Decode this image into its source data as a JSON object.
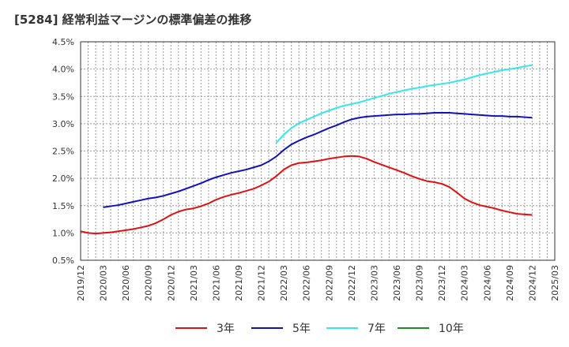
{
  "title": "[5284]  経常利益マージンの標準偏差の推移",
  "colors": {
    "series3": "#dd1111",
    "series5": "#1111bb",
    "series7": "#33e6f0",
    "series10": "#228822"
  },
  "chart_data": {
    "type": "line",
    "title": "[5284]  経常利益マージンの標準偏差の推移",
    "xlabel": "",
    "ylabel": "",
    "ylim": [
      0.5,
      4.5
    ],
    "y_ticks": [
      "0.5%",
      "1.0%",
      "1.5%",
      "2.0%",
      "2.5%",
      "3.0%",
      "3.5%",
      "4.0%",
      "4.5%"
    ],
    "x_ticks": [
      "2019/12",
      "2020/03",
      "2020/06",
      "2020/09",
      "2020/12",
      "2021/03",
      "2021/06",
      "2021/09",
      "2021/12",
      "2022/03",
      "2022/06",
      "2022/09",
      "2022/12",
      "2023/03",
      "2023/06",
      "2023/09",
      "2023/12",
      "2024/03",
      "2024/06",
      "2024/09",
      "2024/12",
      "2025/03"
    ],
    "grid": true,
    "legend_position": "bottom",
    "series": [
      {
        "name": "3年",
        "color": "#dd1111",
        "points": [
          [
            "2019/12",
            1.03
          ],
          [
            "2020/01",
            1.0
          ],
          [
            "2020/02",
            0.99
          ],
          [
            "2020/03",
            1.0
          ],
          [
            "2020/04",
            1.01
          ],
          [
            "2020/05",
            1.03
          ],
          [
            "2020/06",
            1.05
          ],
          [
            "2020/07",
            1.07
          ],
          [
            "2020/08",
            1.1
          ],
          [
            "2020/09",
            1.13
          ],
          [
            "2020/10",
            1.18
          ],
          [
            "2020/11",
            1.25
          ],
          [
            "2020/12",
            1.33
          ],
          [
            "2021/01",
            1.39
          ],
          [
            "2021/02",
            1.43
          ],
          [
            "2021/03",
            1.45
          ],
          [
            "2021/04",
            1.49
          ],
          [
            "2021/05",
            1.54
          ],
          [
            "2021/06",
            1.61
          ],
          [
            "2021/07",
            1.66
          ],
          [
            "2021/08",
            1.7
          ],
          [
            "2021/09",
            1.73
          ],
          [
            "2021/10",
            1.77
          ],
          [
            "2021/11",
            1.81
          ],
          [
            "2021/12",
            1.87
          ],
          [
            "2022/01",
            1.94
          ],
          [
            "2022/02",
            2.04
          ],
          [
            "2022/03",
            2.16
          ],
          [
            "2022/04",
            2.24
          ],
          [
            "2022/05",
            2.28
          ],
          [
            "2022/06",
            2.29
          ],
          [
            "2022/07",
            2.31
          ],
          [
            "2022/08",
            2.33
          ],
          [
            "2022/09",
            2.36
          ],
          [
            "2022/10",
            2.38
          ],
          [
            "2022/11",
            2.4
          ],
          [
            "2022/12",
            2.41
          ],
          [
            "2023/01",
            2.4
          ],
          [
            "2023/02",
            2.36
          ],
          [
            "2023/03",
            2.3
          ],
          [
            "2023/04",
            2.25
          ],
          [
            "2023/05",
            2.2
          ],
          [
            "2023/06",
            2.15
          ],
          [
            "2023/07",
            2.1
          ],
          [
            "2023/08",
            2.04
          ],
          [
            "2023/09",
            1.99
          ],
          [
            "2023/10",
            1.95
          ],
          [
            "2023/11",
            1.93
          ],
          [
            "2023/12",
            1.9
          ],
          [
            "2024/01",
            1.84
          ],
          [
            "2024/02",
            1.74
          ],
          [
            "2024/03",
            1.63
          ],
          [
            "2024/04",
            1.56
          ],
          [
            "2024/05",
            1.51
          ],
          [
            "2024/06",
            1.48
          ],
          [
            "2024/07",
            1.45
          ],
          [
            "2024/08",
            1.41
          ],
          [
            "2024/09",
            1.38
          ],
          [
            "2024/10",
            1.35
          ],
          [
            "2024/11",
            1.34
          ],
          [
            "2024/12",
            1.33
          ]
        ]
      },
      {
        "name": "5年",
        "color": "#1111bb",
        "points": [
          [
            "2020/03",
            1.47
          ],
          [
            "2020/04",
            1.49
          ],
          [
            "2020/05",
            1.51
          ],
          [
            "2020/06",
            1.54
          ],
          [
            "2020/07",
            1.57
          ],
          [
            "2020/08",
            1.6
          ],
          [
            "2020/09",
            1.63
          ],
          [
            "2020/10",
            1.65
          ],
          [
            "2020/11",
            1.68
          ],
          [
            "2020/12",
            1.72
          ],
          [
            "2021/01",
            1.76
          ],
          [
            "2021/02",
            1.81
          ],
          [
            "2021/03",
            1.86
          ],
          [
            "2021/04",
            1.91
          ],
          [
            "2021/05",
            1.97
          ],
          [
            "2021/06",
            2.02
          ],
          [
            "2021/07",
            2.06
          ],
          [
            "2021/08",
            2.1
          ],
          [
            "2021/09",
            2.13
          ],
          [
            "2021/10",
            2.16
          ],
          [
            "2021/11",
            2.2
          ],
          [
            "2021/12",
            2.24
          ],
          [
            "2022/01",
            2.31
          ],
          [
            "2022/02",
            2.4
          ],
          [
            "2022/03",
            2.52
          ],
          [
            "2022/04",
            2.62
          ],
          [
            "2022/05",
            2.69
          ],
          [
            "2022/06",
            2.75
          ],
          [
            "2022/07",
            2.8
          ],
          [
            "2022/08",
            2.86
          ],
          [
            "2022/09",
            2.92
          ],
          [
            "2022/10",
            2.97
          ],
          [
            "2022/11",
            3.03
          ],
          [
            "2022/12",
            3.08
          ],
          [
            "2023/01",
            3.11
          ],
          [
            "2023/02",
            3.13
          ],
          [
            "2023/03",
            3.14
          ],
          [
            "2023/04",
            3.15
          ],
          [
            "2023/05",
            3.16
          ],
          [
            "2023/06",
            3.17
          ],
          [
            "2023/07",
            3.17
          ],
          [
            "2023/08",
            3.18
          ],
          [
            "2023/09",
            3.18
          ],
          [
            "2023/10",
            3.19
          ],
          [
            "2023/11",
            3.2
          ],
          [
            "2023/12",
            3.2
          ],
          [
            "2024/01",
            3.2
          ],
          [
            "2024/02",
            3.19
          ],
          [
            "2024/03",
            3.18
          ],
          [
            "2024/04",
            3.17
          ],
          [
            "2024/05",
            3.16
          ],
          [
            "2024/06",
            3.15
          ],
          [
            "2024/07",
            3.14
          ],
          [
            "2024/08",
            3.14
          ],
          [
            "2024/09",
            3.13
          ],
          [
            "2024/10",
            3.13
          ],
          [
            "2024/11",
            3.12
          ],
          [
            "2024/12",
            3.11
          ]
        ]
      },
      {
        "name": "7年",
        "color": "#33e6f0",
        "points": [
          [
            "2022/02",
            2.65
          ],
          [
            "2022/03",
            2.8
          ],
          [
            "2022/04",
            2.92
          ],
          [
            "2022/05",
            3.01
          ],
          [
            "2022/06",
            3.07
          ],
          [
            "2022/07",
            3.13
          ],
          [
            "2022/08",
            3.19
          ],
          [
            "2022/09",
            3.24
          ],
          [
            "2022/10",
            3.29
          ],
          [
            "2022/11",
            3.33
          ],
          [
            "2022/12",
            3.36
          ],
          [
            "2023/01",
            3.39
          ],
          [
            "2023/02",
            3.43
          ],
          [
            "2023/03",
            3.47
          ],
          [
            "2023/04",
            3.51
          ],
          [
            "2023/05",
            3.55
          ],
          [
            "2023/06",
            3.58
          ],
          [
            "2023/07",
            3.61
          ],
          [
            "2023/08",
            3.64
          ],
          [
            "2023/09",
            3.66
          ],
          [
            "2023/10",
            3.69
          ],
          [
            "2023/11",
            3.71
          ],
          [
            "2023/12",
            3.73
          ],
          [
            "2024/01",
            3.75
          ],
          [
            "2024/02",
            3.78
          ],
          [
            "2024/03",
            3.81
          ],
          [
            "2024/04",
            3.85
          ],
          [
            "2024/05",
            3.89
          ],
          [
            "2024/06",
            3.92
          ],
          [
            "2024/07",
            3.95
          ],
          [
            "2024/08",
            3.98
          ],
          [
            "2024/09",
            4.0
          ],
          [
            "2024/10",
            4.02
          ],
          [
            "2024/11",
            4.05
          ],
          [
            "2024/12",
            4.07
          ]
        ]
      },
      {
        "name": "10年",
        "color": "#228822",
        "points": []
      }
    ]
  }
}
